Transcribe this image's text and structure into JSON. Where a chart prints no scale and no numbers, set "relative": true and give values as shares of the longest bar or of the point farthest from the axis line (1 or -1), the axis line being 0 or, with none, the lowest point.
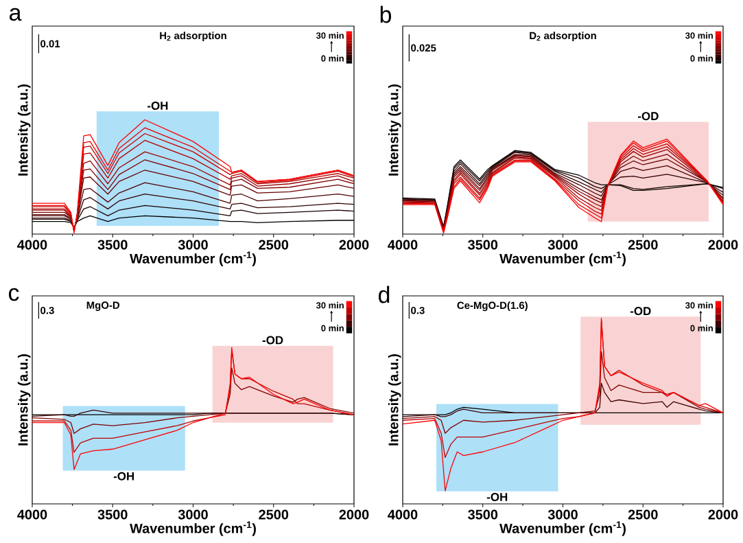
{
  "chart_data": [
    {
      "type": "line",
      "relative": true,
      "title": "H$_{2}$ adsorption",
      "xlabel": "Wavenumber (cm$^{-1}$)",
      "ylabel": "Intensity (a.u.)",
      "xlim": [
        4000,
        2000
      ],
      "xticks": [
        4000,
        3500,
        3000,
        2500,
        2000
      ],
      "tick_labels": "x",
      "annotations": [
        "a",
        "0.01",
        "30 min",
        "0 min"
      ],
      "bands": [
        {
          "axis": "x",
          "from": 3600,
          "to": 2840,
          "label": "-OH",
          "color": "#aee0f8"
        }
      ],
      "x": [
        4000,
        3800,
        3760,
        3740,
        3720,
        3680,
        3640,
        3530,
        3460,
        3300,
        3000,
        2770,
        2760,
        2700,
        2600,
        2400,
        2100,
        2000
      ],
      "series": [
        {
          "color": "#000000",
          "values": [
            0.11,
            0.11,
            0.1,
            0.06,
            0.11,
            0.14,
            0.16,
            0.11,
            0.14,
            0.16,
            0.14,
            0.11,
            0.11,
            0.11,
            0.1,
            0.11,
            0.12,
            0.12
          ]
        },
        {
          "color": "#1a0000",
          "values": [
            0.13,
            0.13,
            0.11,
            0.05,
            0.12,
            0.22,
            0.24,
            0.16,
            0.21,
            0.25,
            0.21,
            0.16,
            0.2,
            0.21,
            0.18,
            0.19,
            0.21,
            0.2
          ]
        },
        {
          "color": "#330000",
          "values": [
            0.14,
            0.14,
            0.12,
            0.05,
            0.13,
            0.3,
            0.32,
            0.22,
            0.29,
            0.35,
            0.29,
            0.22,
            0.26,
            0.27,
            0.23,
            0.24,
            0.27,
            0.26
          ]
        },
        {
          "color": "#4d0000",
          "values": [
            0.16,
            0.16,
            0.13,
            0.05,
            0.14,
            0.39,
            0.4,
            0.28,
            0.36,
            0.45,
            0.37,
            0.27,
            0.34,
            0.35,
            0.29,
            0.31,
            0.35,
            0.33
          ]
        },
        {
          "color": "#660000",
          "values": [
            0.17,
            0.17,
            0.14,
            0.04,
            0.15,
            0.49,
            0.5,
            0.35,
            0.46,
            0.56,
            0.46,
            0.34,
            0.42,
            0.43,
            0.36,
            0.37,
            0.43,
            0.4
          ]
        },
        {
          "color": "#800000",
          "values": [
            0.19,
            0.19,
            0.15,
            0.04,
            0.16,
            0.56,
            0.57,
            0.39,
            0.52,
            0.65,
            0.53,
            0.39,
            0.46,
            0.48,
            0.4,
            0.41,
            0.48,
            0.44
          ]
        },
        {
          "color": "#990000",
          "values": [
            0.21,
            0.21,
            0.15,
            0.03,
            0.16,
            0.62,
            0.64,
            0.44,
            0.58,
            0.72,
            0.59,
            0.43,
            0.49,
            0.51,
            0.42,
            0.44,
            0.51,
            0.46
          ]
        },
        {
          "color": "#b30000",
          "values": [
            0.22,
            0.22,
            0.16,
            0.03,
            0.17,
            0.7,
            0.71,
            0.49,
            0.66,
            0.82,
            0.66,
            0.48,
            0.51,
            0.53,
            0.44,
            0.46,
            0.53,
            0.49
          ]
        },
        {
          "color": "#cc0000",
          "values": [
            0.24,
            0.24,
            0.17,
            0.02,
            0.18,
            0.76,
            0.77,
            0.53,
            0.71,
            0.88,
            0.72,
            0.52,
            0.53,
            0.55,
            0.45,
            0.47,
            0.55,
            0.5
          ]
        },
        {
          "color": "#e60000",
          "values": [
            0.25,
            0.25,
            0.18,
            0.02,
            0.18,
            0.8,
            0.81,
            0.56,
            0.75,
            0.93,
            0.76,
            0.55,
            0.54,
            0.56,
            0.46,
            0.48,
            0.56,
            0.51
          ]
        },
        {
          "color": "#ff0000",
          "values": [
            0.27,
            0.27,
            0.19,
            0.01,
            0.19,
            0.86,
            0.87,
            0.6,
            0.8,
            1,
            0.81,
            0.59,
            0.54,
            0.56,
            0.46,
            0.48,
            0.56,
            0.51
          ]
        }
      ]
    },
    {
      "type": "line",
      "relative": true,
      "title": "D$_{2}$ adsorption",
      "xlabel": "Wavenumber (cm$^{-1}$)",
      "ylabel": "Intensity (a.u.)",
      "xlim": [
        4000,
        2000
      ],
      "xticks": [
        4000,
        3500,
        3000,
        2500,
        2000
      ],
      "tick_labels": "x",
      "annotations": [
        "b",
        "0.025",
        "30 min",
        "0 min"
      ],
      "bands": [
        {
          "axis": "x",
          "from": 2845,
          "to": 2090,
          "label": "-OD",
          "color": "#f9d3d3"
        }
      ],
      "x": [
        4000,
        3800,
        3745,
        3720,
        3680,
        3640,
        3520,
        3470,
        3440,
        3300,
        3200,
        3050,
        2900,
        2800,
        2760,
        2720,
        2640,
        2560,
        2500,
        2350,
        2100,
        2000
      ],
      "series": [
        {
          "color": "#000000",
          "values": [
            0.38,
            0.37,
            0.08,
            0.31,
            0.71,
            0.78,
            0.58,
            0.68,
            0.72,
            0.88,
            0.86,
            0.68,
            0.62,
            0.54,
            0.52,
            0.52,
            0.51,
            0.46,
            0.46,
            0.48,
            0.53,
            0.49
          ]
        },
        {
          "color": "#1a0000",
          "values": [
            0.37,
            0.36,
            0.07,
            0.3,
            0.69,
            0.76,
            0.56,
            0.66,
            0.71,
            0.87,
            0.85,
            0.67,
            0.59,
            0.5,
            0.48,
            0.52,
            0.52,
            0.48,
            0.47,
            0.5,
            0.53,
            0.48
          ]
        },
        {
          "color": "#330000",
          "values": [
            0.37,
            0.36,
            0.07,
            0.28,
            0.66,
            0.74,
            0.53,
            0.64,
            0.7,
            0.86,
            0.84,
            0.66,
            0.55,
            0.47,
            0.44,
            0.52,
            0.6,
            0.61,
            0.59,
            0.63,
            0.54,
            0.44
          ]
        },
        {
          "color": "#4d0000",
          "values": [
            0.36,
            0.35,
            0.06,
            0.27,
            0.64,
            0.71,
            0.51,
            0.62,
            0.69,
            0.84,
            0.83,
            0.64,
            0.52,
            0.43,
            0.4,
            0.52,
            0.66,
            0.7,
            0.67,
            0.72,
            0.54,
            0.41
          ]
        },
        {
          "color": "#660000",
          "values": [
            0.35,
            0.35,
            0.05,
            0.26,
            0.62,
            0.69,
            0.48,
            0.6,
            0.68,
            0.83,
            0.82,
            0.63,
            0.48,
            0.39,
            0.36,
            0.51,
            0.7,
            0.77,
            0.73,
            0.79,
            0.55,
            0.38
          ]
        },
        {
          "color": "#800000",
          "values": [
            0.35,
            0.34,
            0.05,
            0.25,
            0.6,
            0.67,
            0.46,
            0.58,
            0.67,
            0.82,
            0.81,
            0.62,
            0.45,
            0.36,
            0.33,
            0.51,
            0.73,
            0.82,
            0.77,
            0.84,
            0.55,
            0.37
          ]
        },
        {
          "color": "#990000",
          "values": [
            0.34,
            0.33,
            0.04,
            0.23,
            0.57,
            0.65,
            0.43,
            0.56,
            0.65,
            0.81,
            0.8,
            0.61,
            0.42,
            0.32,
            0.29,
            0.51,
            0.76,
            0.87,
            0.81,
            0.89,
            0.55,
            0.35
          ]
        },
        {
          "color": "#b30000",
          "values": [
            0.33,
            0.33,
            0.03,
            0.22,
            0.55,
            0.63,
            0.41,
            0.54,
            0.64,
            0.8,
            0.79,
            0.6,
            0.38,
            0.28,
            0.25,
            0.51,
            0.78,
            0.9,
            0.84,
            0.92,
            0.56,
            0.34
          ]
        },
        {
          "color": "#cc0000",
          "values": [
            0.32,
            0.32,
            0.02,
            0.21,
            0.53,
            0.6,
            0.38,
            0.52,
            0.63,
            0.78,
            0.78,
            0.58,
            0.35,
            0.24,
            0.21,
            0.51,
            0.8,
            0.93,
            0.87,
            0.95,
            0.56,
            0.33
          ]
        },
        {
          "color": "#e60000",
          "values": [
            0.32,
            0.32,
            0.02,
            0.19,
            0.5,
            0.58,
            0.36,
            0.5,
            0.62,
            0.77,
            0.77,
            0.57,
            0.31,
            0.21,
            0.17,
            0.51,
            0.82,
            0.96,
            0.89,
            0.98,
            0.56,
            0.32
          ]
        },
        {
          "color": "#ff0000",
          "values": [
            0.31,
            0.31,
            0.01,
            0.18,
            0.48,
            0.56,
            0.33,
            0.48,
            0.61,
            0.76,
            0.76,
            0.56,
            0.28,
            0.17,
            0.13,
            0.51,
            0.83,
            0.98,
            0.91,
            1,
            0.56,
            0.31
          ]
        }
      ]
    },
    {
      "type": "line",
      "relative": true,
      "title": "MgO-D",
      "xlabel": "Wavenumber (cm$^{-1}$)",
      "ylabel": "Intensity (a.u.)",
      "xlim": [
        4000,
        2000
      ],
      "xticks": [
        4000,
        3500,
        3000,
        2500,
        2000
      ],
      "tick_labels": "x",
      "annotations": [
        "c",
        "0.3",
        "30 min",
        "0 min"
      ],
      "bands": [
        {
          "axis": "x",
          "from": 3810,
          "to": 3050,
          "label": "-OH",
          "color": "#aee0f8"
        },
        {
          "axis": "x",
          "from": 2880,
          "to": 2130,
          "label": "-OD",
          "color": "#f9d3d3"
        }
      ],
      "x": [
        4000,
        3800,
        3760,
        3740,
        3700,
        3620,
        3500,
        3300,
        3100,
        3000,
        2900,
        2800,
        2770,
        2760,
        2740,
        2700,
        2650,
        2500,
        2380,
        2350,
        2310,
        2150,
        2000
      ],
      "series": [
        {
          "color": "#000000",
          "values": [
            0.57,
            0.57,
            0.57,
            0.57,
            0.57,
            0.57,
            0.57,
            0.57,
            0.57,
            0.57,
            0.58,
            0.58,
            0.58,
            0.58,
            0.58,
            0.58,
            0.58,
            0.58,
            0.58,
            0.58,
            0.58,
            0.58,
            0.57
          ]
        },
        {
          "color": "#400000",
          "values": [
            0.56,
            0.57,
            0.56,
            0.56,
            0.58,
            0.6,
            0.58,
            0.58,
            0.58,
            0.58,
            0.58,
            0.58,
            0.58,
            0.58,
            0.58,
            0.58,
            0.58,
            0.58,
            0.58,
            0.58,
            0.58,
            0.58,
            0.57
          ]
        },
        {
          "color": "#800000",
          "values": [
            0.55,
            0.54,
            0.52,
            0.45,
            0.48,
            0.51,
            0.5,
            0.52,
            0.55,
            0.56,
            0.57,
            0.58,
            0.7,
            0.87,
            0.77,
            0.73,
            0.75,
            0.69,
            0.65,
            0.67,
            0.68,
            0.61,
            0.58
          ]
        },
        {
          "color": "#c00000",
          "values": [
            0.53,
            0.53,
            0.47,
            0.33,
            0.39,
            0.42,
            0.42,
            0.46,
            0.5,
            0.53,
            0.55,
            0.58,
            0.74,
            0.98,
            0.83,
            0.8,
            0.8,
            0.72,
            0.67,
            0.64,
            0.64,
            0.6,
            0.57
          ]
        },
        {
          "color": "#ff0000",
          "values": [
            0.52,
            0.52,
            0.44,
            0.22,
            0.32,
            0.34,
            0.35,
            0.41,
            0.47,
            0.52,
            0.55,
            0.57,
            0.77,
            1,
            0.83,
            0.8,
            0.81,
            0.7,
            0.64,
            0.65,
            0.67,
            0.6,
            0.57
          ]
        }
      ]
    },
    {
      "type": "line",
      "relative": true,
      "title": "Ce-MgO-D(1.6)",
      "xlabel": "Wavenumber (cm$^{-1}$)",
      "ylabel": "Intensity (a.u.)",
      "xlim": [
        4000,
        2000
      ],
      "xticks": [
        4000,
        3500,
        3000,
        2500,
        2000
      ],
      "tick_labels": "x",
      "annotations": [
        "d",
        "0.3",
        "30 min",
        "0 min"
      ],
      "bands": [
        {
          "axis": "x",
          "from": 3790,
          "to": 3030,
          "label": "-OH",
          "color": "#aee0f8"
        },
        {
          "axis": "x",
          "from": 2890,
          "to": 2140,
          "label": "-OD",
          "color": "#f9d3d3"
        }
      ],
      "x": [
        4000,
        3800,
        3760,
        3735,
        3700,
        3660,
        3620,
        3500,
        3300,
        3100,
        3000,
        2900,
        2800,
        2770,
        2760,
        2740,
        2700,
        2650,
        2500,
        2380,
        2350,
        2310,
        2150,
        2110,
        2000
      ],
      "series": [
        {
          "color": "#000000",
          "values": [
            0.48,
            0.48,
            0.48,
            0.48,
            0.49,
            0.51,
            0.52,
            0.51,
            0.49,
            0.49,
            0.49,
            0.49,
            0.49,
            0.49,
            0.49,
            0.49,
            0.49,
            0.49,
            0.49,
            0.49,
            0.49,
            0.49,
            0.49,
            0.49,
            0.49
          ]
        },
        {
          "color": "#400000",
          "values": [
            0.47,
            0.48,
            0.47,
            0.47,
            0.48,
            0.5,
            0.51,
            0.49,
            0.49,
            0.49,
            0.49,
            0.49,
            0.49,
            0.52,
            0.65,
            0.6,
            0.55,
            0.56,
            0.54,
            0.55,
            0.52,
            0.55,
            0.51,
            0.5,
            0.49
          ]
        },
        {
          "color": "#800000",
          "values": [
            0.46,
            0.47,
            0.45,
            0.38,
            0.41,
            0.43,
            0.45,
            0.44,
            0.45,
            0.47,
            0.48,
            0.49,
            0.5,
            0.59,
            0.82,
            0.68,
            0.61,
            0.64,
            0.6,
            0.6,
            0.58,
            0.6,
            0.52,
            0.51,
            0.49
          ]
        },
        {
          "color": "#c00000",
          "values": [
            0.45,
            0.46,
            0.38,
            0.25,
            0.32,
            0.36,
            0.36,
            0.36,
            0.4,
            0.44,
            0.46,
            0.47,
            0.49,
            0.63,
            0.99,
            0.74,
            0.69,
            0.72,
            0.64,
            0.6,
            0.59,
            0.6,
            0.53,
            0.52,
            0.49
          ]
        },
        {
          "color": "#ff0000",
          "values": [
            0.43,
            0.45,
            0.34,
            0.07,
            0.19,
            0.28,
            0.26,
            0.28,
            0.33,
            0.41,
            0.45,
            0.47,
            0.49,
            0.65,
            1,
            0.74,
            0.69,
            0.71,
            0.65,
            0.61,
            0.58,
            0.6,
            0.53,
            0.54,
            0.49
          ]
        }
      ]
    }
  ]
}
